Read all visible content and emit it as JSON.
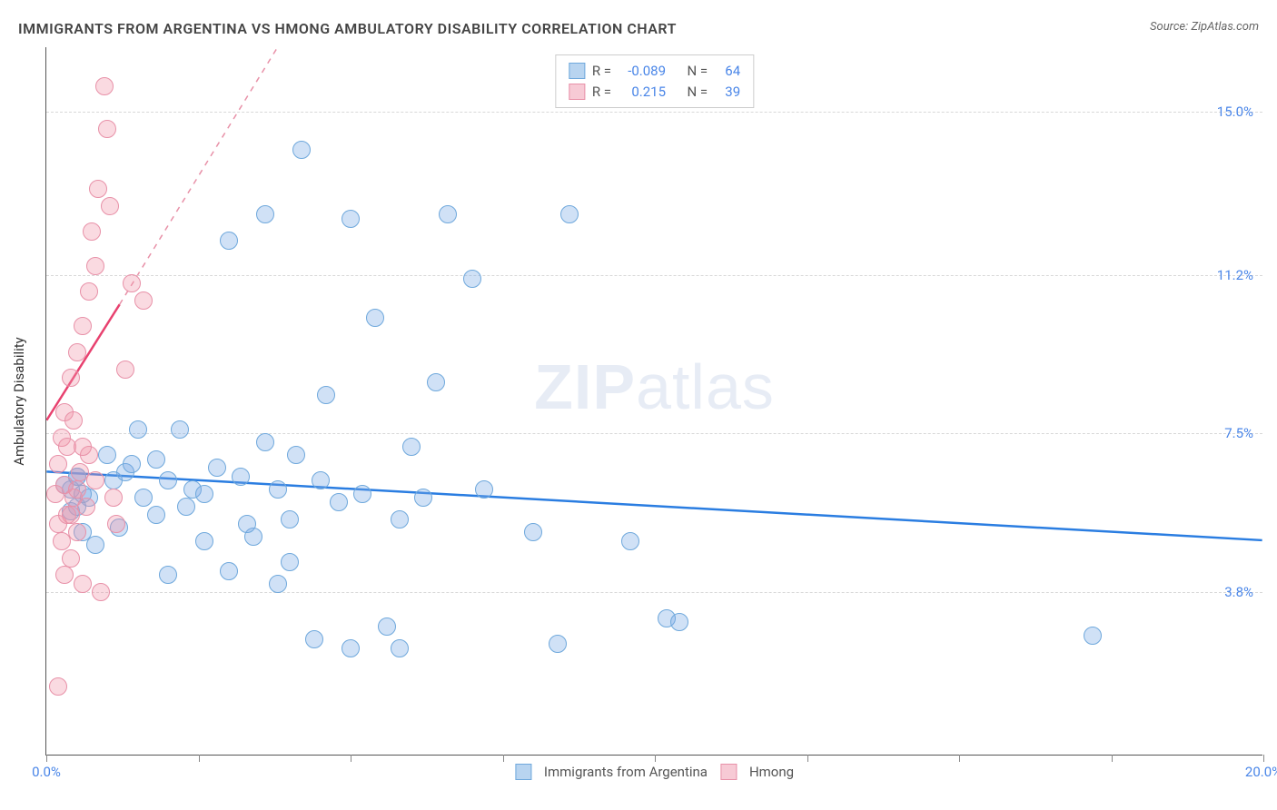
{
  "title": "IMMIGRANTS FROM ARGENTINA VS HMONG AMBULATORY DISABILITY CORRELATION CHART",
  "source_label": "Source: ",
  "source_name": "ZipAtlas.com",
  "watermark_bold": "ZIP",
  "watermark_light": "atlas",
  "y_axis_label": "Ambulatory Disability",
  "chart": {
    "type": "scatter",
    "background_color": "#ffffff",
    "grid_color": "#d8d8d8",
    "axis_color": "#555555",
    "label_color": "#4a86e8",
    "xlim": [
      0,
      20
    ],
    "ylim": [
      0,
      16.5
    ],
    "x_ticks": [
      0,
      2.5,
      5,
      7.5,
      10,
      12.5,
      15,
      17.5,
      20
    ],
    "x_tick_labels": {
      "0": "0.0%",
      "20": "20.0%"
    },
    "y_grid": [
      {
        "v": 3.8,
        "label": "3.8%"
      },
      {
        "v": 7.5,
        "label": "7.5%"
      },
      {
        "v": 11.2,
        "label": "11.2%"
      },
      {
        "v": 15.0,
        "label": "15.0%"
      }
    ],
    "marker_radius": 10,
    "marker_stroke_width": 1.5,
    "series": [
      {
        "name": "Immigrants from Argentina",
        "fill": "rgba(120,170,230,0.35)",
        "stroke": "#6fa8dc",
        "swatch_fill": "#b8d4f0",
        "swatch_stroke": "#6fa8dc",
        "R": "-0.089",
        "N": "64",
        "trend": {
          "x1": 0,
          "y1": 6.6,
          "x2": 20,
          "y2": 5.0,
          "color": "#2a7de1",
          "width": 2.5,
          "dash": "none"
        },
        "points": [
          [
            0.4,
            6.2
          ],
          [
            0.4,
            5.7
          ],
          [
            0.5,
            6.5
          ],
          [
            0.6,
            5.2
          ],
          [
            0.7,
            6.0
          ],
          [
            0.8,
            4.9
          ],
          [
            1.0,
            7.0
          ],
          [
            1.1,
            6.4
          ],
          [
            1.2,
            5.3
          ],
          [
            1.3,
            6.6
          ],
          [
            1.5,
            7.6
          ],
          [
            1.6,
            6.0
          ],
          [
            1.8,
            5.6
          ],
          [
            1.8,
            6.9
          ],
          [
            2.0,
            4.2
          ],
          [
            2.0,
            6.4
          ],
          [
            2.2,
            7.6
          ],
          [
            2.3,
            5.8
          ],
          [
            2.4,
            6.2
          ],
          [
            2.6,
            5.0
          ],
          [
            2.8,
            6.7
          ],
          [
            3.0,
            12.0
          ],
          [
            3.0,
            4.3
          ],
          [
            3.2,
            6.5
          ],
          [
            3.4,
            5.1
          ],
          [
            3.6,
            12.6
          ],
          [
            3.6,
            7.3
          ],
          [
            3.8,
            6.2
          ],
          [
            4.0,
            5.5
          ],
          [
            4.0,
            4.5
          ],
          [
            4.2,
            14.1
          ],
          [
            4.4,
            2.7
          ],
          [
            4.5,
            6.4
          ],
          [
            4.6,
            8.4
          ],
          [
            4.8,
            5.9
          ],
          [
            5.0,
            2.5
          ],
          [
            5.0,
            12.5
          ],
          [
            5.2,
            6.1
          ],
          [
            5.4,
            10.2
          ],
          [
            5.6,
            3.0
          ],
          [
            5.8,
            5.5
          ],
          [
            5.8,
            2.5
          ],
          [
            6.0,
            7.2
          ],
          [
            6.2,
            6.0
          ],
          [
            6.6,
            12.6
          ],
          [
            7.0,
            11.1
          ],
          [
            7.2,
            6.2
          ],
          [
            8.0,
            5.2
          ],
          [
            8.4,
            2.6
          ],
          [
            8.6,
            12.6
          ],
          [
            9.6,
            5.0
          ],
          [
            10.2,
            3.2
          ],
          [
            10.4,
            3.1
          ],
          [
            17.2,
            2.8
          ],
          [
            0.5,
            6.5
          ],
          [
            0.3,
            6.3
          ],
          [
            0.5,
            5.8
          ],
          [
            0.6,
            6.1
          ],
          [
            1.4,
            6.8
          ],
          [
            2.6,
            6.1
          ],
          [
            3.3,
            5.4
          ],
          [
            3.8,
            4.0
          ],
          [
            4.1,
            7.0
          ],
          [
            6.4,
            8.7
          ]
        ]
      },
      {
        "name": "Hmong",
        "fill": "rgba(240,150,170,0.35)",
        "stroke": "#e891a8",
        "swatch_fill": "#f7cad5",
        "swatch_stroke": "#e891a8",
        "R": "0.215",
        "N": "39",
        "trend_solid": {
          "x1": 0,
          "y1": 7.8,
          "x2": 1.2,
          "y2": 10.5,
          "color": "#e8416f",
          "width": 2.5
        },
        "trend_dash": {
          "x1": 1.2,
          "y1": 10.5,
          "x2": 3.8,
          "y2": 16.5,
          "color": "#e891a8",
          "width": 1.5
        },
        "points": [
          [
            0.15,
            6.1
          ],
          [
            0.2,
            5.4
          ],
          [
            0.2,
            6.8
          ],
          [
            0.25,
            7.4
          ],
          [
            0.25,
            5.0
          ],
          [
            0.3,
            8.0
          ],
          [
            0.3,
            6.3
          ],
          [
            0.35,
            5.6
          ],
          [
            0.35,
            7.2
          ],
          [
            0.4,
            4.6
          ],
          [
            0.4,
            8.8
          ],
          [
            0.45,
            6.0
          ],
          [
            0.45,
            7.8
          ],
          [
            0.5,
            5.2
          ],
          [
            0.5,
            9.4
          ],
          [
            0.55,
            6.6
          ],
          [
            0.6,
            4.0
          ],
          [
            0.6,
            10.0
          ],
          [
            0.65,
            5.8
          ],
          [
            0.7,
            10.8
          ],
          [
            0.7,
            7.0
          ],
          [
            0.75,
            12.2
          ],
          [
            0.8,
            6.4
          ],
          [
            0.8,
            11.4
          ],
          [
            0.85,
            13.2
          ],
          [
            0.9,
            3.8
          ],
          [
            0.95,
            15.6
          ],
          [
            1.0,
            14.6
          ],
          [
            1.05,
            12.8
          ],
          [
            1.1,
            6.0
          ],
          [
            1.15,
            5.4
          ],
          [
            1.3,
            9.0
          ],
          [
            1.4,
            11.0
          ],
          [
            1.6,
            10.6
          ],
          [
            0.2,
            1.6
          ],
          [
            0.3,
            4.2
          ],
          [
            0.4,
            5.6
          ],
          [
            0.5,
            6.2
          ],
          [
            0.6,
            7.2
          ]
        ]
      }
    ]
  }
}
